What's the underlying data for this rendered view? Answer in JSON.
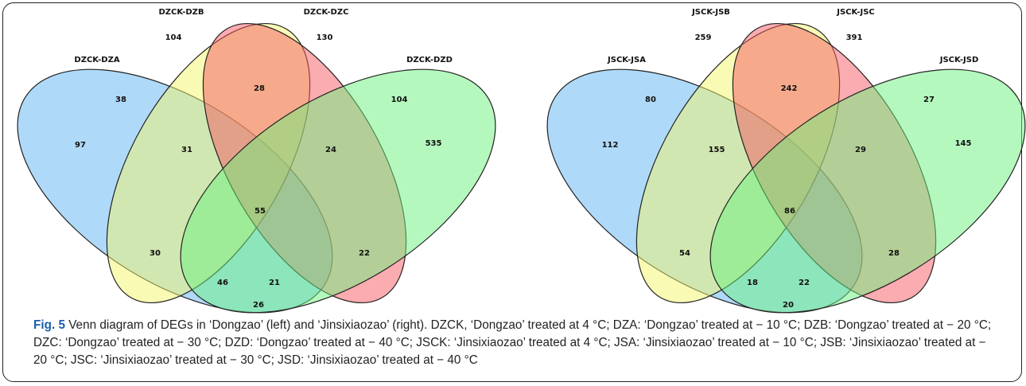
{
  "diagrams": [
    {
      "sets": [
        "DZCK-DZA",
        "DZCK-DZB",
        "DZCK-DZC",
        "DZCK-DZD"
      ],
      "regions": [
        104,
        130,
        38,
        28,
        104,
        97,
        31,
        24,
        535,
        55,
        30,
        22,
        46,
        21,
        26
      ]
    },
    {
      "sets": [
        "JSCK-JSA",
        "JSCK-JSB",
        "JSCK-JSC",
        "JSCK-JSD"
      ],
      "regions": [
        259,
        391,
        80,
        242,
        27,
        112,
        155,
        29,
        145,
        86,
        54,
        28,
        18,
        22,
        20
      ]
    }
  ],
  "caption": {
    "label": "Fig. 5",
    "text": "Venn diagram of DEGs in ‘Dongzao’ (left) and ‘Jinsixiaozao’ (right). DZCK, ‘Dongzao’ treated at 4 °C; DZA: ‘Dongzao’ treated at − 10 °C; DZB: ‘Dongzao’ treated at − 20 °C; DZC: ‘Dongzao’ treated at − 30 °C; DZD: ‘Dongzao’ treated at − 40 °C; JSCK: ‘Jinsixiaozao’ treated at 4 °C; JSA: ‘Jinsixiaozao’ treated at − 10 °C; JSB: ‘Jinsixiaozao’ treated at − 20 °C; JSC: ‘Jinsixiaozao’ treated at − 30 °C; JSD: ‘Jinsixiaozao’ treated at − 40 °C"
  }
}
